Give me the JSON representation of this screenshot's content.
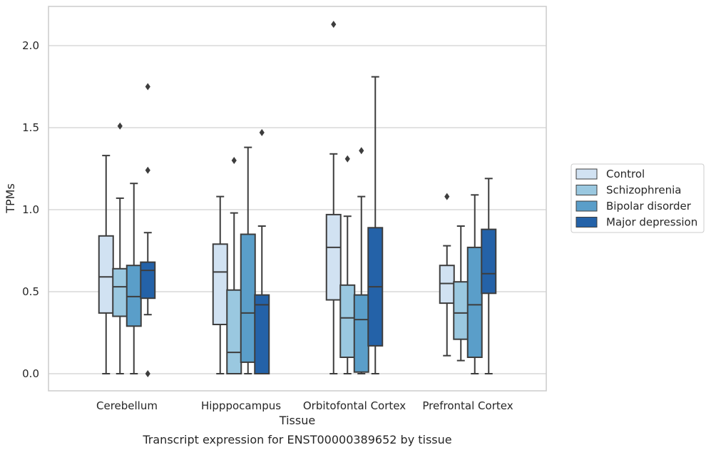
{
  "caption": "Transcript expression for ENST00000389652 by tissue",
  "chart_data": {
    "type": "box",
    "title": "",
    "xlabel": "Tissue",
    "ylabel": "TPMs",
    "ylim": [
      -0.1,
      2.25
    ],
    "yticks": [
      0.0,
      0.5,
      1.0,
      1.5,
      2.0
    ],
    "ytick_labels": [
      "0.0",
      "0.5",
      "1.0",
      "1.5",
      "2.0"
    ],
    "grid": "horizontal",
    "legend_position": "right",
    "categories": [
      "Cerebellum",
      "Hipppocampus",
      "Orbitofontal Cortex",
      "Prefrontal Cortex"
    ],
    "series": [
      {
        "name": "Control",
        "color": "#d1e2f2",
        "boxes": [
          {
            "whislo": 0.0,
            "q1": 0.37,
            "med": 0.59,
            "q3": 0.84,
            "whishi": 1.33,
            "fliers": []
          },
          {
            "whislo": 0.0,
            "q1": 0.3,
            "med": 0.62,
            "q3": 0.79,
            "whishi": 1.08,
            "fliers": []
          },
          {
            "whislo": 0.0,
            "q1": 0.45,
            "med": 0.77,
            "q3": 0.97,
            "whishi": 1.34,
            "fliers": [
              2.13
            ]
          },
          {
            "whislo": 0.11,
            "q1": 0.43,
            "med": 0.55,
            "q3": 0.66,
            "whishi": 0.78,
            "fliers": [
              1.08
            ]
          }
        ]
      },
      {
        "name": "Schizophrenia",
        "color": "#9ac8e0",
        "boxes": [
          {
            "whislo": 0.0,
            "q1": 0.35,
            "med": 0.53,
            "q3": 0.64,
            "whishi": 1.07,
            "fliers": [
              1.51
            ]
          },
          {
            "whislo": 0.0,
            "q1": 0.0,
            "med": 0.13,
            "q3": 0.51,
            "whishi": 0.98,
            "fliers": [
              1.3
            ]
          },
          {
            "whislo": 0.0,
            "q1": 0.1,
            "med": 0.34,
            "q3": 0.54,
            "whishi": 0.96,
            "fliers": [
              1.31
            ]
          },
          {
            "whislo": 0.08,
            "q1": 0.21,
            "med": 0.37,
            "q3": 0.56,
            "whishi": 0.9,
            "fliers": []
          }
        ]
      },
      {
        "name": "Bipolar disorder",
        "color": "#5a9ec9",
        "boxes": [
          {
            "whislo": 0.0,
            "q1": 0.29,
            "med": 0.47,
            "q3": 0.66,
            "whishi": 1.16,
            "fliers": []
          },
          {
            "whislo": 0.0,
            "q1": 0.07,
            "med": 0.37,
            "q3": 0.85,
            "whishi": 1.38,
            "fliers": []
          },
          {
            "whislo": 0.0,
            "q1": 0.01,
            "med": 0.33,
            "q3": 0.48,
            "whishi": 1.08,
            "fliers": [
              1.36
            ]
          },
          {
            "whislo": 0.0,
            "q1": 0.1,
            "med": 0.42,
            "q3": 0.77,
            "whishi": 1.09,
            "fliers": []
          }
        ]
      },
      {
        "name": "Major depression",
        "color": "#2462a8",
        "boxes": [
          {
            "whislo": 0.36,
            "q1": 0.46,
            "med": 0.63,
            "q3": 0.68,
            "whishi": 0.86,
            "fliers": [
              1.75,
              1.24,
              0.0
            ]
          },
          {
            "whislo": 0.0,
            "q1": 0.0,
            "med": 0.42,
            "q3": 0.48,
            "whishi": 0.9,
            "fliers": [
              1.47
            ]
          },
          {
            "whislo": 0.0,
            "q1": 0.17,
            "med": 0.53,
            "q3": 0.89,
            "whishi": 1.81,
            "fliers": []
          },
          {
            "whislo": 0.0,
            "q1": 0.49,
            "med": 0.61,
            "q3": 0.88,
            "whishi": 1.19,
            "fliers": []
          }
        ]
      }
    ]
  }
}
